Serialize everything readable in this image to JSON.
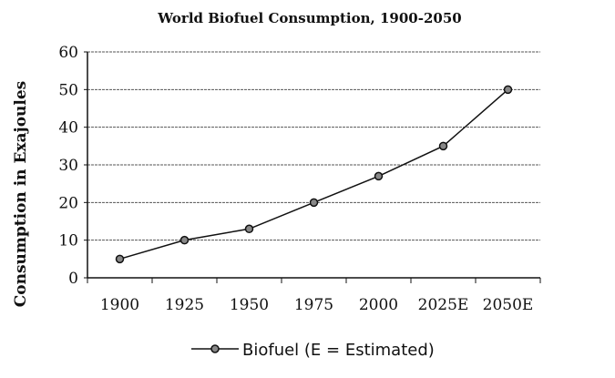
{
  "chart_data": {
    "type": "line",
    "title": "World Biofuel Consumption, 1900-2050",
    "xlabel": "",
    "ylabel": "Consumption in Exajoules",
    "categories": [
      "1900",
      "1925",
      "1950",
      "1975",
      "2000",
      "2025E",
      "2050E"
    ],
    "series": [
      {
        "name": "Biofuel (E = Estimated)",
        "values": [
          5,
          10,
          13,
          20,
          27,
          35,
          50
        ]
      }
    ],
    "ylim": [
      0,
      60
    ],
    "yticks": [
      0,
      10,
      20,
      30,
      40,
      50,
      60
    ],
    "grid": true,
    "legend": "bottom"
  }
}
